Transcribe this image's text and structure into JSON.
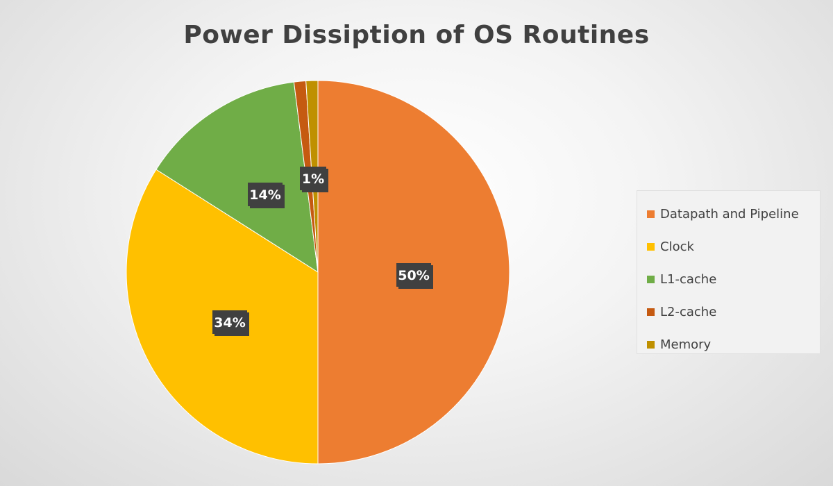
{
  "chart_data": {
    "type": "pie",
    "title": "Power Dissiption of OS Routines",
    "categories": [
      "Datapath and Pipeline",
      "Clock",
      "L1-cache",
      "L2-cache",
      "Memory"
    ],
    "values": [
      50,
      34,
      14,
      1,
      1
    ],
    "data_labels": [
      "50%",
      "34%",
      "14%",
      "",
      "1%"
    ],
    "colors": [
      "#ED7D31",
      "#FFC000",
      "#70AD47",
      "#C55A11",
      "#BF9000"
    ],
    "legend_position": "right",
    "start_angle": "12 o'clock, clockwise"
  },
  "legend": {
    "items": [
      {
        "label": "Datapath and Pipeline",
        "color": "#ED7D31"
      },
      {
        "label": "Clock",
        "color": "#FFC000"
      },
      {
        "label": "L1-cache",
        "color": "#70AD47"
      },
      {
        "label": "L2-cache",
        "color": "#C55A11"
      },
      {
        "label": "Memory",
        "color": "#BF9000"
      }
    ]
  }
}
